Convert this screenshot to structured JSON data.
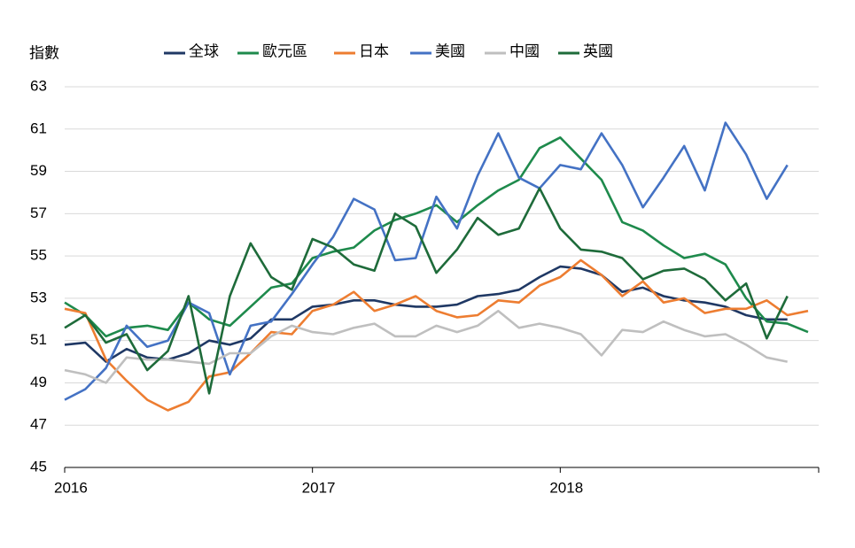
{
  "chart_data": {
    "type": "line",
    "y_label": "指數",
    "categories": [
      "2016",
      null,
      null,
      null,
      null,
      null,
      null,
      null,
      null,
      null,
      null,
      null,
      "2017",
      null,
      null,
      null,
      null,
      null,
      null,
      null,
      null,
      null,
      null,
      null,
      "2018",
      null,
      null,
      null,
      null,
      null,
      null,
      null,
      null,
      null,
      null,
      null,
      null
    ],
    "series": [
      {
        "name": "全球",
        "color": "#1f3864",
        "values": [
          50.8,
          50.9,
          50.0,
          50.6,
          50.2,
          50.1,
          50.4,
          51.0,
          50.8,
          51.1,
          52.0,
          52.0,
          52.6,
          52.7,
          52.9,
          52.9,
          52.7,
          52.6,
          52.6,
          52.7,
          53.1,
          53.2,
          53.4,
          54.0,
          54.5,
          54.4,
          54.1,
          53.3,
          53.5,
          53.1,
          52.9,
          52.8,
          52.6,
          52.2,
          52.0,
          52.0,
          null
        ]
      },
      {
        "name": "歐元區",
        "color": "#1e8a4c",
        "values": [
          52.8,
          52.2,
          51.2,
          51.6,
          51.7,
          51.5,
          52.8,
          52.0,
          51.7,
          52.6,
          53.5,
          53.7,
          54.9,
          55.2,
          55.4,
          56.2,
          56.7,
          57.0,
          57.4,
          56.6,
          57.4,
          58.1,
          58.6,
          60.1,
          60.6,
          59.6,
          58.6,
          56.6,
          56.2,
          55.5,
          54.9,
          55.1,
          54.6,
          53.0,
          51.9,
          51.8,
          51.4
        ]
      },
      {
        "name": "日本",
        "color": "#ed7d31",
        "values": [
          52.5,
          52.3,
          50.1,
          49.1,
          48.2,
          47.7,
          48.1,
          49.3,
          49.5,
          50.4,
          51.4,
          51.3,
          52.4,
          52.7,
          53.3,
          52.4,
          52.7,
          53.1,
          52.4,
          52.1,
          52.2,
          52.9,
          52.8,
          53.6,
          54.0,
          54.8,
          54.1,
          53.1,
          53.8,
          52.8,
          53.0,
          52.3,
          52.5,
          52.5,
          52.9,
          52.2,
          52.4
        ]
      },
      {
        "name": "美國",
        "color": "#4472c4",
        "values": [
          48.2,
          48.7,
          49.7,
          51.7,
          50.7,
          51.0,
          52.8,
          52.3,
          49.4,
          51.7,
          51.9,
          53.2,
          54.6,
          55.9,
          57.7,
          57.2,
          54.8,
          54.9,
          57.8,
          56.3,
          58.8,
          60.8,
          58.7,
          58.2,
          59.3,
          59.1,
          60.8,
          59.3,
          57.3,
          58.7,
          60.2,
          58.1,
          61.3,
          59.8,
          57.7,
          59.3,
          null
        ]
      },
      {
        "name": "中國",
        "color": "#bfbfbf",
        "values": [
          49.6,
          49.4,
          49.0,
          50.2,
          50.1,
          50.1,
          50.0,
          49.9,
          50.4,
          50.4,
          51.2,
          51.7,
          51.4,
          51.3,
          51.6,
          51.8,
          51.2,
          51.2,
          51.7,
          51.4,
          51.7,
          52.4,
          51.6,
          51.8,
          51.6,
          51.3,
          50.3,
          51.5,
          51.4,
          51.9,
          51.5,
          51.2,
          51.3,
          50.8,
          50.2,
          50.0,
          null
        ]
      },
      {
        "name": "英國",
        "color": "#1e6b3a",
        "values": [
          51.6,
          52.2,
          50.9,
          51.3,
          49.6,
          50.5,
          53.1,
          48.5,
          53.1,
          55.6,
          54.0,
          53.4,
          55.8,
          55.4,
          54.6,
          54.3,
          57.0,
          56.4,
          54.2,
          55.3,
          56.8,
          56.0,
          56.3,
          58.2,
          56.3,
          55.3,
          55.2,
          54.9,
          53.9,
          54.3,
          54.4,
          53.9,
          52.9,
          53.7,
          51.1,
          53.1,
          null
        ]
      }
    ],
    "ylim": [
      45,
      63
    ],
    "yticks": [
      45,
      47,
      49,
      51,
      53,
      55,
      57,
      59,
      61,
      63
    ],
    "grid": true
  }
}
